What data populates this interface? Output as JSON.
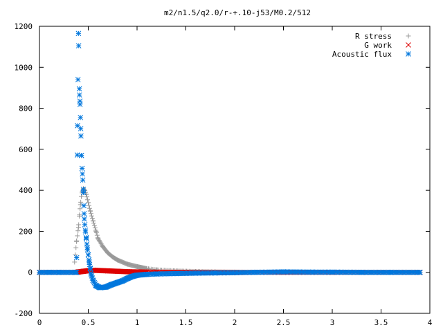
{
  "chart_data": {
    "type": "scatter",
    "title": "m2/n1.5/q2.0/r-+.10-j53/M0.2/512",
    "xlabel": "",
    "ylabel": "",
    "xlim": [
      0,
      4
    ],
    "ylim": [
      -200,
      1200
    ],
    "x_ticks": [
      "0",
      "0.5",
      "1",
      "1.5",
      "2",
      "2.5",
      "3",
      "3.5",
      "4"
    ],
    "y_ticks": [
      "-200",
      "0",
      "200",
      "400",
      "600",
      "800",
      "1000",
      "1200"
    ],
    "grid": false,
    "legend_position": "top-right",
    "series": [
      {
        "name": "R stress",
        "marker": "plus",
        "color": "#999999",
        "points": [
          [
            0,
            0
          ],
          [
            0.1,
            0
          ],
          [
            0.2,
            0
          ],
          [
            0.3,
            0
          ],
          [
            0.35,
            0
          ],
          [
            0.38,
            150
          ],
          [
            0.4,
            220
          ],
          [
            0.41,
            280
          ],
          [
            0.42,
            330
          ],
          [
            0.43,
            370
          ],
          [
            0.44,
            395
          ],
          [
            0.45,
            408
          ],
          [
            0.46,
            405
          ],
          [
            0.48,
            380
          ],
          [
            0.5,
            340
          ],
          [
            0.52,
            300
          ],
          [
            0.55,
            250
          ],
          [
            0.58,
            200
          ],
          [
            0.6,
            165
          ],
          [
            0.65,
            125
          ],
          [
            0.7,
            95
          ],
          [
            0.75,
            75
          ],
          [
            0.8,
            60
          ],
          [
            0.9,
            40
          ],
          [
            1.0,
            28
          ],
          [
            1.1,
            18
          ],
          [
            1.2,
            12
          ],
          [
            1.4,
            7
          ],
          [
            1.6,
            4
          ],
          [
            1.8,
            2
          ],
          [
            2.0,
            1
          ],
          [
            2.5,
            0
          ],
          [
            3.0,
            0
          ],
          [
            3.5,
            0
          ],
          [
            3.9,
            0
          ]
        ]
      },
      {
        "name": "G work",
        "marker": "cross",
        "color": "#dd0000",
        "points": [
          [
            0,
            0
          ],
          [
            0.2,
            0
          ],
          [
            0.38,
            0
          ],
          [
            0.4,
            2
          ],
          [
            0.45,
            5
          ],
          [
            0.5,
            8
          ],
          [
            0.55,
            10
          ],
          [
            0.6,
            9
          ],
          [
            0.7,
            7
          ],
          [
            0.8,
            5
          ],
          [
            0.9,
            3
          ],
          [
            1.0,
            2
          ],
          [
            1.2,
            1
          ],
          [
            1.5,
            0
          ],
          [
            2.0,
            0
          ],
          [
            2.5,
            0
          ],
          [
            3.0,
            0
          ],
          [
            3.5,
            0
          ],
          [
            3.9,
            0
          ]
        ]
      },
      {
        "name": "Acoustic flux",
        "marker": "star",
        "color": "#0077dd",
        "points": [
          [
            0,
            0
          ],
          [
            0.1,
            0
          ],
          [
            0.2,
            0
          ],
          [
            0.3,
            0
          ],
          [
            0.38,
            0
          ],
          [
            0.39,
            715
          ],
          [
            0.4,
            1165
          ],
          [
            0.41,
            865
          ],
          [
            0.415,
            835
          ],
          [
            0.42,
            755
          ],
          [
            0.425,
            665
          ],
          [
            0.43,
            570
          ],
          [
            0.44,
            480
          ],
          [
            0.45,
            405
          ],
          [
            0.455,
            325
          ],
          [
            0.46,
            260
          ],
          [
            0.47,
            205
          ],
          [
            0.48,
            165
          ],
          [
            0.49,
            120
          ],
          [
            0.5,
            85
          ],
          [
            0.51,
            50
          ],
          [
            0.52,
            20
          ],
          [
            0.53,
            -10
          ],
          [
            0.55,
            -40
          ],
          [
            0.58,
            -65
          ],
          [
            0.62,
            -75
          ],
          [
            0.68,
            -72
          ],
          [
            0.74,
            -60
          ],
          [
            0.8,
            -50
          ],
          [
            0.85,
            -42
          ],
          [
            0.9,
            -30
          ],
          [
            0.95,
            -20
          ],
          [
            1.0,
            -14
          ],
          [
            1.1,
            -10
          ],
          [
            1.2,
            -8
          ],
          [
            1.4,
            -6
          ],
          [
            1.6,
            -4
          ],
          [
            1.8,
            -3
          ],
          [
            2.0,
            -2
          ],
          [
            2.2,
            0
          ],
          [
            2.5,
            2
          ],
          [
            2.8,
            1
          ],
          [
            3.0,
            1
          ],
          [
            3.3,
            0
          ],
          [
            3.6,
            0
          ],
          [
            3.9,
            0
          ]
        ]
      }
    ]
  },
  "colors": {
    "r_stress": "#999999",
    "g_work": "#dd0000",
    "acoustic_flux": "#0077dd"
  }
}
